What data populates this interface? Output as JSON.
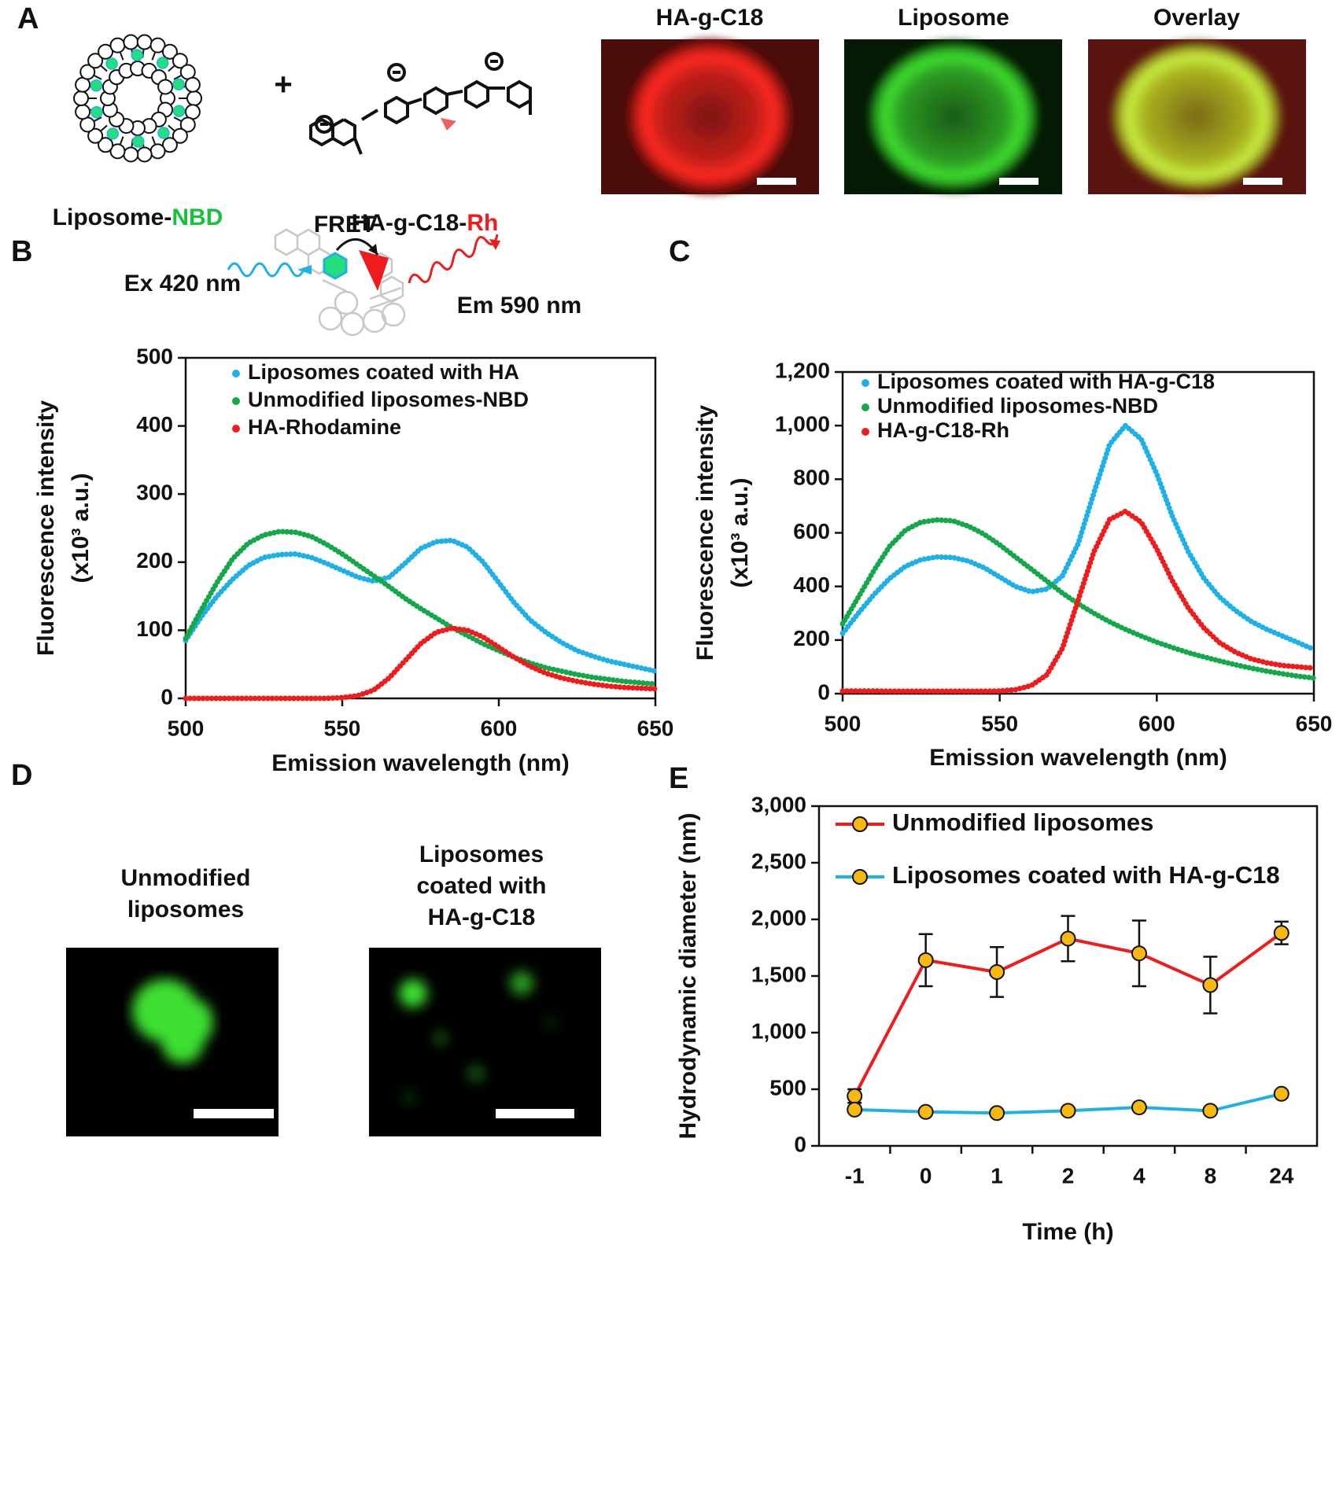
{
  "panels": {
    "labels": {
      "a": "A",
      "b": "B",
      "c": "C",
      "d": "D",
      "e": "E"
    },
    "a": {
      "liposome": [
        "Liposome-",
        "NBD"
      ],
      "polymer": [
        "HA-g-C18-",
        "Rh"
      ],
      "plus": "+",
      "images": [
        "HA-g-C18",
        "Liposome",
        "Overlay"
      ]
    },
    "b": {
      "fret": "FRET",
      "ex": "Ex 420 nm",
      "em": "Em 590 nm"
    },
    "d": {
      "images": [
        [
          "Unmodified",
          "liposomes"
        ],
        [
          "Liposomes",
          "coated with",
          "HA-g-C18"
        ]
      ]
    }
  },
  "chart_data": [
    {
      "type": "line",
      "marker": "dots",
      "legend": "upper left",
      "x": [
        500,
        505,
        510,
        515,
        520,
        525,
        530,
        535,
        540,
        545,
        550,
        555,
        560,
        565,
        570,
        575,
        580,
        585,
        590,
        595,
        600,
        605,
        610,
        615,
        620,
        625,
        630,
        635,
        640,
        645,
        650
      ],
      "xlim": [
        500,
        650
      ],
      "xticks": [
        500,
        550,
        600,
        650
      ],
      "ylim": [
        0,
        500
      ],
      "yticks": [
        0,
        100,
        200,
        300,
        400,
        500
      ],
      "xlabel": "Emission wavelength (nm)",
      "ylabel": [
        "Fluorescence intensity",
        "(x10³ a.u.)"
      ],
      "series": [
        {
          "name": "Liposomes coated with HA",
          "color": "#1fb1e6",
          "values": [
            85,
            120,
            150,
            175,
            195,
            207,
            211,
            212,
            207,
            198,
            188,
            178,
            172,
            178,
            198,
            220,
            230,
            232,
            222,
            200,
            170,
            140,
            115,
            97,
            82,
            70,
            62,
            55,
            50,
            45,
            40
          ]
        },
        {
          "name": "Unmodified liposomes-NBD",
          "color": "#15a84a",
          "values": [
            88,
            130,
            170,
            205,
            228,
            240,
            245,
            244,
            238,
            226,
            212,
            196,
            180,
            164,
            147,
            132,
            118,
            104,
            92,
            80,
            70,
            60,
            52,
            45,
            40,
            35,
            31,
            28,
            25,
            23,
            21
          ]
        },
        {
          "name": "HA-Rhodamine",
          "color": "#ee1c1c",
          "values": [
            0,
            0,
            0,
            0,
            0,
            0,
            0,
            0,
            0,
            0,
            1,
            4,
            12,
            30,
            55,
            80,
            97,
            103,
            100,
            90,
            75,
            60,
            47,
            37,
            30,
            25,
            21,
            18,
            16,
            15,
            14
          ]
        }
      ]
    },
    {
      "type": "line",
      "marker": "dots",
      "legend": "upper left",
      "x": [
        500,
        505,
        510,
        515,
        520,
        525,
        530,
        535,
        540,
        545,
        550,
        555,
        560,
        565,
        570,
        575,
        580,
        585,
        590,
        595,
        600,
        605,
        610,
        615,
        620,
        625,
        630,
        635,
        640,
        645,
        650
      ],
      "xlim": [
        500,
        650
      ],
      "xticks": [
        500,
        550,
        600,
        650
      ],
      "ylim": [
        0,
        1200
      ],
      "yticks": [
        0,
        200,
        400,
        600,
        800,
        {
          "value": 1000,
          "label": "1,000"
        },
        {
          "value": 1200,
          "label": "1,200"
        }
      ],
      "xlabel": "Emission wavelength (nm)",
      "ylabel": [
        "Fluorescence intensity",
        "(x10³ a.u.)"
      ],
      "series": [
        {
          "name": "Liposomes coated with HA-g-C18",
          "color": "#1fb1e6",
          "values": [
            225,
            300,
            370,
            430,
            475,
            500,
            510,
            508,
            495,
            470,
            435,
            400,
            380,
            390,
            440,
            560,
            750,
            930,
            1000,
            950,
            820,
            660,
            530,
            430,
            360,
            310,
            270,
            240,
            215,
            190,
            165
          ]
        },
        {
          "name": "Unmodified liposomes-NBD",
          "color": "#15a84a",
          "values": [
            260,
            360,
            460,
            550,
            610,
            640,
            648,
            645,
            625,
            595,
            555,
            510,
            465,
            420,
            375,
            335,
            300,
            268,
            240,
            215,
            192,
            172,
            153,
            137,
            122,
            108,
            95,
            84,
            74,
            65,
            58
          ]
        },
        {
          "name": "HA-g-C18-Rh",
          "color": "#ee1c1c",
          "values": [
            10,
            10,
            10,
            9,
            9,
            9,
            9,
            9,
            9,
            9,
            10,
            15,
            30,
            70,
            170,
            350,
            530,
            650,
            680,
            640,
            540,
            420,
            320,
            245,
            190,
            155,
            130,
            115,
            105,
            100,
            95
          ]
        }
      ]
    },
    {
      "type": "line",
      "marker": "circle",
      "marker_color": "#f7b90f",
      "legend": "upper left",
      "categories": [
        "-1",
        "0",
        "1",
        "2",
        "4",
        "8",
        "24"
      ],
      "ylim": [
        0,
        3000
      ],
      "yticks": [
        0,
        500,
        {
          "value": 1000,
          "label": "1,000"
        },
        {
          "value": 1500,
          "label": "1,500"
        },
        {
          "value": 2000,
          "label": "2,000"
        },
        {
          "value": 2500,
          "label": "2,500"
        },
        {
          "value": 3000,
          "label": "3,000"
        }
      ],
      "xlabel": "Time (h)",
      "ylabel": "Hydrodynamic diameter (nm)",
      "series": [
        {
          "name": "Unmodified liposomes",
          "color": "#ee1c1c",
          "values": [
            440,
            1640,
            1535,
            1830,
            1700,
            1420,
            1880
          ],
          "errors": [
            60,
            230,
            220,
            200,
            290,
            250,
            100
          ]
        },
        {
          "name": "Liposomes coated with HA-g-C18",
          "color": "#1fb1e6",
          "values": [
            320,
            300,
            290,
            310,
            340,
            310,
            460
          ],
          "errors": [
            20,
            15,
            15,
            15,
            20,
            15,
            25
          ]
        }
      ]
    }
  ]
}
